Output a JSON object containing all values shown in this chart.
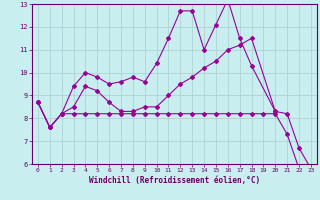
{
  "xlabel": "Windchill (Refroidissement éolien,°C)",
  "bg_color": "#c8eef0",
  "line_color": "#990099",
  "grid_color": "#aacccc",
  "axis_color": "#660066",
  "text_color": "#660066",
  "xlim": [
    -0.5,
    23.5
  ],
  "ylim": [
    6,
    13
  ],
  "yticks": [
    6,
    7,
    8,
    9,
    10,
    11,
    12,
    13
  ],
  "xticks": [
    0,
    1,
    2,
    3,
    4,
    5,
    6,
    7,
    8,
    9,
    10,
    11,
    12,
    13,
    14,
    15,
    16,
    17,
    18,
    19,
    20,
    21,
    22,
    23
  ],
  "line1_x": [
    0,
    1,
    2,
    3,
    4,
    5,
    6,
    7,
    8,
    9,
    10,
    11,
    12,
    13,
    14,
    15,
    16,
    17,
    18,
    20
  ],
  "line1_y": [
    8.7,
    7.6,
    8.2,
    9.4,
    10.0,
    9.8,
    9.5,
    9.6,
    9.8,
    9.6,
    10.4,
    11.5,
    12.7,
    12.7,
    11.0,
    12.1,
    13.2,
    11.5,
    10.3,
    8.3
  ],
  "line2_x": [
    0,
    1,
    2,
    3,
    4,
    5,
    6,
    7,
    8,
    9,
    10,
    11,
    12,
    13,
    14,
    15,
    16,
    17,
    18,
    20,
    21,
    22,
    23
  ],
  "line2_y": [
    8.7,
    7.6,
    8.2,
    8.5,
    9.4,
    9.2,
    8.7,
    8.3,
    8.3,
    8.5,
    8.5,
    9.0,
    9.5,
    9.8,
    10.2,
    10.5,
    11.0,
    11.2,
    11.5,
    8.3,
    8.2,
    6.7,
    5.8
  ],
  "line3_x": [
    0,
    1,
    2,
    3,
    4,
    5,
    6,
    7,
    8,
    9,
    10,
    11,
    12,
    13,
    14,
    15,
    16,
    17,
    18,
    19,
    20,
    21,
    22,
    23
  ],
  "line3_y": [
    8.7,
    7.6,
    8.2,
    8.2,
    8.2,
    8.2,
    8.2,
    8.2,
    8.2,
    8.2,
    8.2,
    8.2,
    8.2,
    8.2,
    8.2,
    8.2,
    8.2,
    8.2,
    8.2,
    8.2,
    8.2,
    7.3,
    5.8,
    5.8
  ],
  "marker": "D",
  "markersize": 2.0,
  "linewidth": 0.8
}
